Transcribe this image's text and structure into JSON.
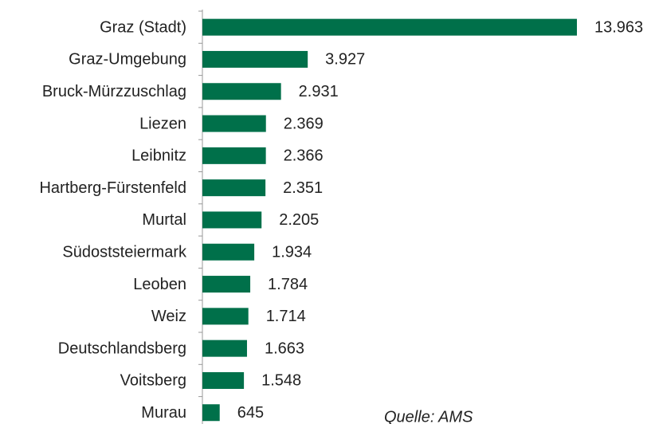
{
  "chart_data": {
    "type": "barh",
    "categories": [
      "Graz (Stadt)",
      "Graz-Umgebung",
      "Bruck-Mürzzuschlag",
      "Liezen",
      "Leibnitz",
      "Hartberg-Fürstenfeld",
      "Murtal",
      "Südoststeiermark",
      "Leoben",
      "Weiz",
      "Deutschlandsberg",
      "Voitsberg",
      "Murau"
    ],
    "values": [
      13963,
      3927,
      2931,
      2369,
      2366,
      2351,
      2205,
      1934,
      1784,
      1714,
      1663,
      1548,
      645
    ],
    "value_labels": [
      "13.963",
      "3.927",
      "2.931",
      "2.369",
      "2.366",
      "2.351",
      "2.205",
      "1.934",
      "1.784",
      "1.714",
      "1.663",
      "1.548",
      "645"
    ],
    "color": "#00704a",
    "annotation": "Quelle: AMS"
  }
}
